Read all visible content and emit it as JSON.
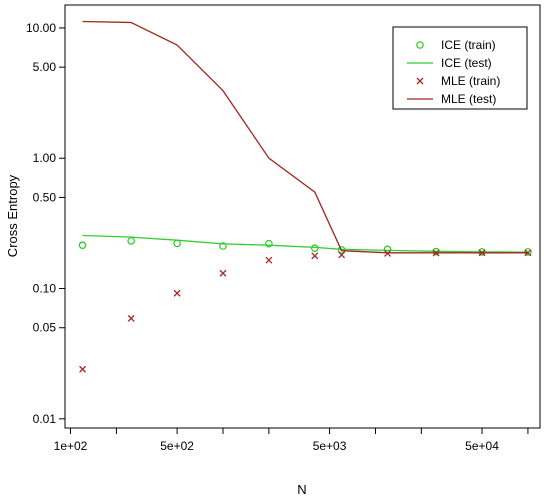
{
  "chart_data": {
    "type": "line",
    "xlabel": "N",
    "ylabel": "Cross Entropy",
    "x_scale": "log",
    "y_scale": "log",
    "xlim": [
      92,
      120000
    ],
    "ylim": [
      0.0085,
      15
    ],
    "x_ticks": [
      {
        "value": 100,
        "label": "1e+02"
      },
      {
        "value": 500,
        "label": "5e+02"
      },
      {
        "value": 5000,
        "label": "5e+03"
      },
      {
        "value": 50000,
        "label": "5e+04"
      }
    ],
    "x_minor_ticks": [
      200,
      1000,
      2000,
      10000,
      20000,
      100000
    ],
    "y_ticks": [
      {
        "value": 0.01,
        "label": "0.01"
      },
      {
        "value": 0.05,
        "label": "0.05"
      },
      {
        "value": 0.1,
        "label": "0.10"
      },
      {
        "value": 0.5,
        "label": "0.50"
      },
      {
        "value": 1,
        "label": "1.00"
      },
      {
        "value": 5,
        "label": "5.00"
      },
      {
        "value": 10,
        "label": "10.00"
      }
    ],
    "x": [
      120,
      250,
      500,
      1000,
      2000,
      4000,
      6000,
      12000,
      25000,
      50000,
      100000
    ],
    "legend_position": "top-right",
    "series": [
      {
        "name": "ICE (train)",
        "kind": "points",
        "marker": "o",
        "color": "#22cc22",
        "values": [
          0.215,
          0.232,
          0.222,
          0.212,
          0.221,
          0.204,
          0.198,
          0.2,
          0.192,
          0.191,
          0.191
        ]
      },
      {
        "name": "ICE (test)",
        "kind": "line",
        "color": "#33cc33",
        "values": [
          0.255,
          0.248,
          0.235,
          0.22,
          0.215,
          0.207,
          0.2,
          0.196,
          0.193,
          0.191,
          0.19
        ]
      },
      {
        "name": "MLE (train)",
        "kind": "points",
        "marker": "x",
        "color": "#a52a2a",
        "values": [
          0.024,
          0.059,
          0.092,
          0.131,
          0.165,
          0.178,
          0.181,
          0.186,
          0.187,
          0.188,
          0.188
        ]
      },
      {
        "name": "MLE (test)",
        "kind": "line",
        "color": "#a0291f",
        "values": [
          11.2,
          11.0,
          7.4,
          3.3,
          1.0,
          0.55,
          0.195,
          0.188,
          0.188,
          0.188,
          0.188
        ]
      }
    ]
  }
}
